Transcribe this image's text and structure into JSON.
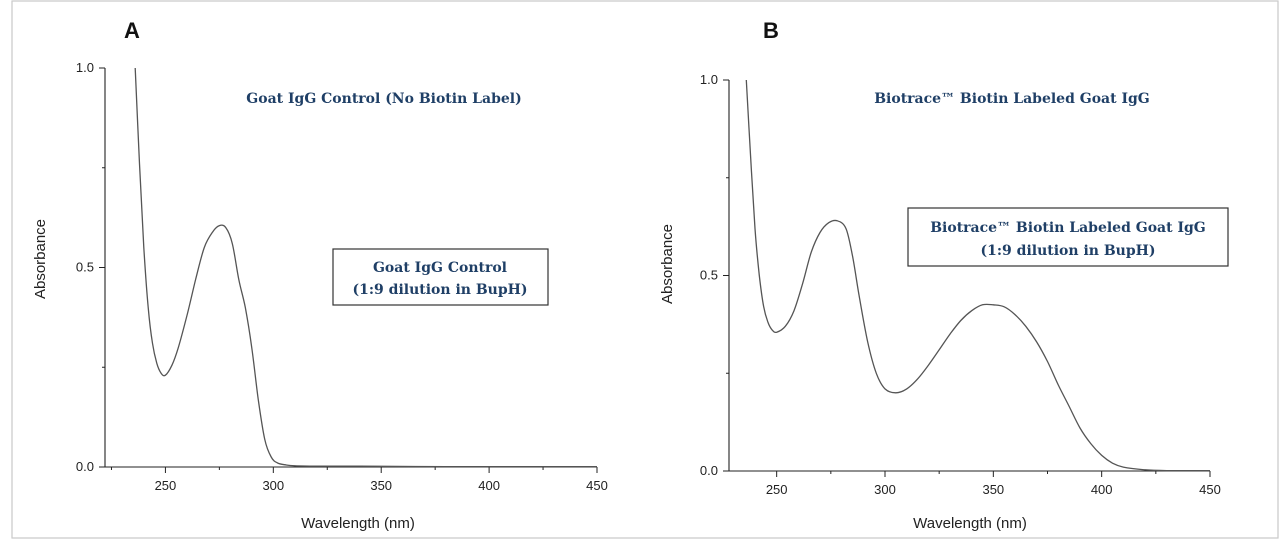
{
  "chart_data": [
    {
      "type": "line",
      "panel_label": "A",
      "xlabel": "Wavelength (nm)",
      "ylabel": "Absorbance",
      "xlim": [
        222,
        450
      ],
      "ylim": [
        0,
        1.0
      ],
      "x_ticks": [
        250,
        300,
        350,
        400,
        450
      ],
      "y_ticks": [
        0.0,
        0.5,
        1.0
      ],
      "x_tick_labels": [
        "250",
        "300",
        "350",
        "400",
        "450"
      ],
      "y_tick_labels": [
        "0.0",
        "0.5",
        "1.0"
      ],
      "annotation_title": "Goat IgG Control (No Biotin Label)",
      "box_text": [
        "Goat IgG Control",
        "(1:9 dilution in BupH)"
      ],
      "series": [
        {
          "x": [
            236,
            238,
            240,
            242,
            244,
            246,
            248,
            250,
            253,
            256,
            260,
            264,
            268,
            272,
            275,
            278,
            281,
            284,
            287,
            290,
            293,
            296,
            299,
            302,
            306,
            310,
            320,
            340,
            380,
            420,
            450
          ],
          "y": [
            1.0,
            0.76,
            0.55,
            0.4,
            0.31,
            0.26,
            0.235,
            0.23,
            0.255,
            0.3,
            0.38,
            0.47,
            0.55,
            0.59,
            0.605,
            0.6,
            0.56,
            0.47,
            0.4,
            0.3,
            0.17,
            0.07,
            0.025,
            0.01,
            0.005,
            0.003,
            0.002,
            0.002,
            0.001,
            0.001,
            0.001
          ]
        }
      ]
    },
    {
      "type": "line",
      "panel_label": "B",
      "xlabel": "Wavelength (nm)",
      "ylabel": "Absorbance",
      "xlim": [
        228,
        450
      ],
      "ylim": [
        0,
        1.0
      ],
      "x_ticks": [
        250,
        300,
        350,
        400,
        450
      ],
      "y_ticks": [
        0.0,
        0.5,
        1.0
      ],
      "x_tick_labels": [
        "250",
        "300",
        "350",
        "400",
        "450"
      ],
      "y_tick_labels": [
        "0.0",
        "0.5",
        "1.0"
      ],
      "annotation_title": "Biotrace™  Biotin Labeled Goat IgG",
      "box_text": [
        "Biotrace™ Biotin Labeled Goat IgG",
        "(1:9 dilution in BupH)"
      ],
      "series": [
        {
          "x": [
            236,
            238,
            240,
            242,
            244,
            246,
            248,
            250,
            254,
            258,
            262,
            266,
            270,
            274,
            278,
            282,
            285,
            288,
            292,
            296,
            300,
            305,
            310,
            315,
            320,
            325,
            330,
            335,
            340,
            345,
            350,
            355,
            360,
            365,
            370,
            375,
            380,
            385,
            390,
            395,
            400,
            405,
            410,
            420,
            430,
            440,
            450
          ],
          "y": [
            1.0,
            0.8,
            0.62,
            0.5,
            0.42,
            0.38,
            0.36,
            0.355,
            0.37,
            0.41,
            0.48,
            0.56,
            0.61,
            0.635,
            0.64,
            0.62,
            0.55,
            0.45,
            0.33,
            0.25,
            0.21,
            0.2,
            0.21,
            0.235,
            0.27,
            0.31,
            0.35,
            0.385,
            0.41,
            0.425,
            0.425,
            0.42,
            0.4,
            0.37,
            0.33,
            0.28,
            0.22,
            0.165,
            0.11,
            0.07,
            0.04,
            0.02,
            0.01,
            0.003,
            0.001,
            0.001,
            0.001
          ]
        }
      ]
    }
  ]
}
